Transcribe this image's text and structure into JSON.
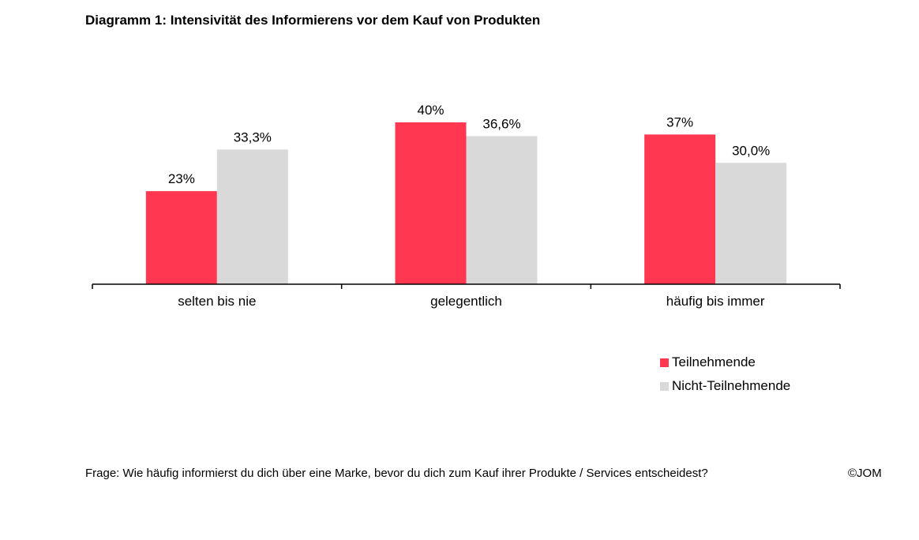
{
  "title": "Diagramm 1: Intensivität des Informierens vor dem Kauf von Produkten",
  "chart_data": {
    "type": "bar",
    "categories": [
      "selten bis nie",
      "gelegentlich",
      "häufig bis immer"
    ],
    "series": [
      {
        "name": "Teilnehmende",
        "values": [
          23,
          40,
          37
        ],
        "labels": [
          "23%",
          "40%",
          "37%"
        ],
        "color": "#ff3750"
      },
      {
        "name": "Nicht-Teilnehmende",
        "values": [
          33.3,
          36.6,
          30.0
        ],
        "labels": [
          "33,3%",
          "36,6%",
          "30,0%"
        ],
        "color": "#d9d9d9"
      }
    ],
    "ylim": [
      0,
      40
    ],
    "grid": false,
    "legend_position": "bottom-right",
    "xlabel": "",
    "ylabel": ""
  },
  "legend": {
    "items": [
      {
        "label": "Teilnehmende",
        "color": "#ff3750"
      },
      {
        "label": "Nicht-Teilnehmende",
        "color": "#d9d9d9"
      }
    ]
  },
  "footnote": "Frage: Wie häufig informierst du dich über eine Marke, bevor du dich zum Kauf ihrer Produkte / Services entscheidest?",
  "copyright": "©JOM"
}
